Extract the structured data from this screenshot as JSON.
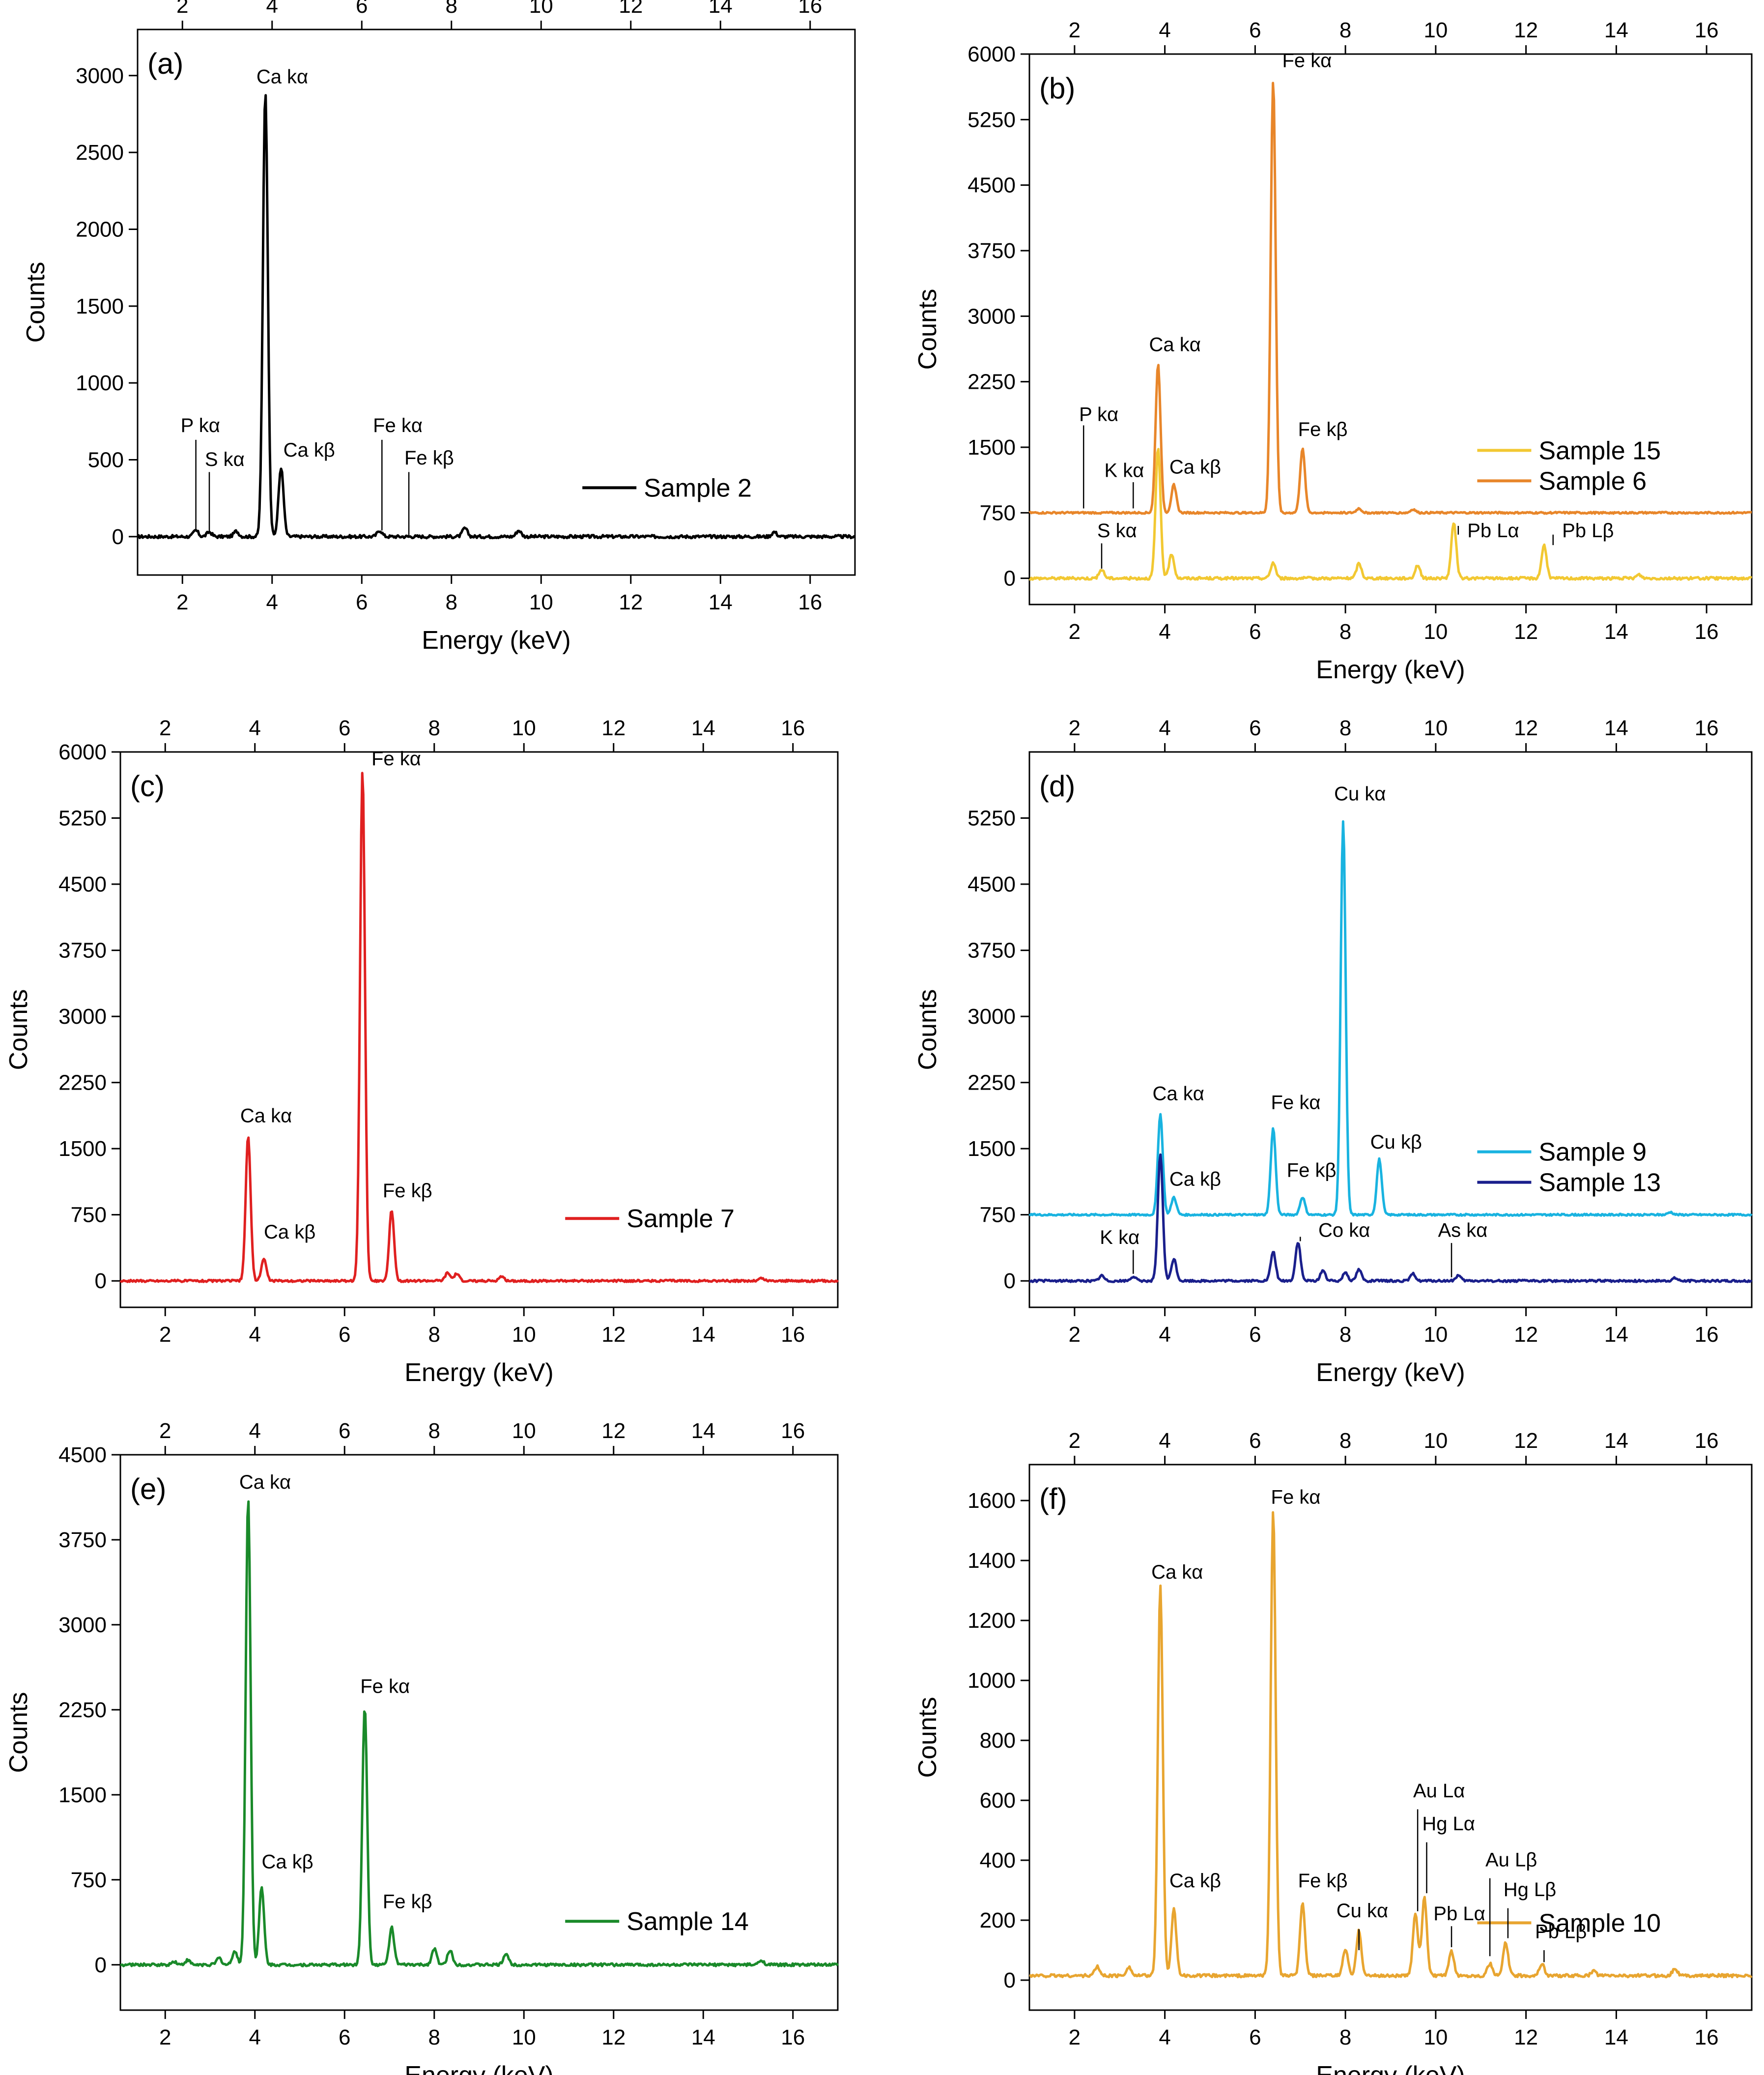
{
  "chart_data": [
    {
      "type": "line",
      "panel": "(a)",
      "xlabel": "Energy (keV)",
      "ylabel": "Counts",
      "xlim": [
        1,
        17
      ],
      "ylim": [
        -250,
        3300
      ],
      "x_ticks": [
        2,
        4,
        6,
        8,
        10,
        12,
        14,
        16
      ],
      "y_ticks": [
        0,
        500,
        1000,
        1500,
        2000,
        2500,
        3000
      ],
      "legend_position": "right",
      "series": [
        {
          "name": "Sample 2",
          "color": "#000000",
          "baseline": 0,
          "noise": 10,
          "peaks": [
            [
              2.3,
              40
            ],
            [
              2.6,
              30
            ],
            [
              3.2,
              35
            ],
            [
              3.85,
              2900
            ],
            [
              4.2,
              450
            ],
            [
              6.4,
              40
            ],
            [
              8.3,
              55
            ],
            [
              9.5,
              40
            ],
            [
              15.2,
              30
            ]
          ]
        }
      ],
      "annotations": [
        {
          "text": "Ca kα",
          "x": 3.85,
          "y": 2950,
          "anchor": "start",
          "dx": -0.2
        },
        {
          "text": "Ca kβ",
          "x": 4.2,
          "y": 520,
          "anchor": "start",
          "dx": 0.05
        },
        {
          "text": "P kα",
          "x": 2.3,
          "y": 680,
          "line_from": 40,
          "line_to": 630,
          "anchor": "middle",
          "dx": 0.1
        },
        {
          "text": "S kα",
          "x": 2.6,
          "y": 460,
          "line_from": 30,
          "line_to": 420,
          "anchor": "start",
          "dx": -0.1
        },
        {
          "text": "Fe kα",
          "x": 6.45,
          "y": 680,
          "line_from": 40,
          "line_to": 630,
          "anchor": "start",
          "dx": -0.2
        },
        {
          "text": "Fe kβ",
          "x": 7.05,
          "y": 470,
          "line_from": 0,
          "line_to": 420,
          "anchor": "start",
          "dx": -0.1
        }
      ]
    },
    {
      "type": "line",
      "panel": "(b)",
      "xlabel": "Energy (keV)",
      "ylabel": "Counts",
      "xlim": [
        1,
        17
      ],
      "ylim": [
        -300,
        6000
      ],
      "x_ticks": [
        2,
        4,
        6,
        8,
        10,
        12,
        14,
        16
      ],
      "y_ticks": [
        0,
        750,
        1500,
        2250,
        3000,
        3750,
        4500,
        5250,
        6000
      ],
      "legend_position": "right",
      "series": [
        {
          "name": "Sample 15",
          "color": "#F2C832",
          "baseline": 0,
          "noise": 15,
          "peaks": [
            [
              2.6,
              100
            ],
            [
              3.85,
              1480
            ],
            [
              4.15,
              280
            ],
            [
              6.4,
              180
            ],
            [
              8.3,
              170
            ],
            [
              9.6,
              150
            ],
            [
              10.4,
              630
            ],
            [
              12.4,
              380
            ],
            [
              14.5,
              40
            ]
          ]
        },
        {
          "name": "Sample 6",
          "color": "#E8862A",
          "baseline": 750,
          "noise": 10,
          "peaks": [
            [
              3.85,
              1700
            ],
            [
              4.2,
              320
            ],
            [
              6.4,
              4950
            ],
            [
              7.05,
              730
            ],
            [
              8.3,
              50
            ],
            [
              9.5,
              40
            ]
          ]
        }
      ],
      "annotations": [
        {
          "text": "Fe kα",
          "x": 6.4,
          "y": 5850,
          "anchor": "start",
          "dx": 0.2
        },
        {
          "text": "Ca kα",
          "x": 3.85,
          "y": 2600,
          "anchor": "start",
          "dx": -0.2
        },
        {
          "text": "Fe kβ",
          "x": 7.05,
          "y": 1630,
          "anchor": "start",
          "dx": -0.1
        },
        {
          "text": "Ca kβ",
          "x": 4.1,
          "y": 1200,
          "anchor": "start",
          "dx": 0.0
        },
        {
          "text": "P kα",
          "x": 2.2,
          "y": 1800,
          "line_from": 800,
          "line_to": 1750,
          "anchor": "start",
          "dx": -0.1
        },
        {
          "text": "K kα",
          "x": 3.3,
          "y": 1160,
          "line_from": 800,
          "line_to": 1100,
          "anchor": "middle",
          "dx": -0.2
        },
        {
          "text": "S kα",
          "x": 2.6,
          "y": 470,
          "line_from": 110,
          "line_to": 400,
          "anchor": "start",
          "dx": -0.1
        },
        {
          "text": "Pb Lα",
          "x": 10.5,
          "y": 470,
          "line_from": 600,
          "line_to": 500,
          "anchor": "start",
          "dx": 0.2
        },
        {
          "text": "Pb Lβ",
          "x": 12.6,
          "y": 470,
          "line_from": 380,
          "line_to": 500,
          "anchor": "start",
          "dx": 0.2
        }
      ]
    },
    {
      "type": "line",
      "panel": "(c)",
      "xlabel": "Energy (keV)",
      "ylabel": "Counts",
      "xlim": [
        1,
        17
      ],
      "ylim": [
        -300,
        6000
      ],
      "x_ticks": [
        2,
        4,
        6,
        8,
        10,
        12,
        14,
        16
      ],
      "y_ticks": [
        0,
        750,
        1500,
        2250,
        3000,
        3750,
        4500,
        5250,
        6000
      ],
      "legend_position": "right",
      "series": [
        {
          "name": "Sample 7",
          "color": "#E02020",
          "baseline": 0,
          "noise": 12,
          "peaks": [
            [
              3.85,
              1640
            ],
            [
              4.2,
              250
            ],
            [
              6.4,
              5800
            ],
            [
              7.05,
              800
            ],
            [
              8.3,
              90
            ],
            [
              8.5,
              80
            ],
            [
              9.5,
              50
            ],
            [
              15.3,
              30
            ]
          ]
        }
      ],
      "annotations": [
        {
          "text": "Fe kα",
          "x": 6.4,
          "y": 5850,
          "anchor": "start",
          "dx": 0.2
        },
        {
          "text": "Ca kα",
          "x": 3.85,
          "y": 1800,
          "anchor": "middle",
          "dx": 0.4
        },
        {
          "text": "Fe kβ",
          "x": 7.05,
          "y": 950,
          "anchor": "start",
          "dx": -0.2
        },
        {
          "text": "Ca kβ",
          "x": 4.2,
          "y": 480,
          "anchor": "start",
          "dx": 0.0
        }
      ]
    },
    {
      "type": "line",
      "panel": "(d)",
      "xlabel": "Energy (keV)",
      "ylabel": "Counts",
      "xlim": [
        1,
        17
      ],
      "ylim": [
        -300,
        6000
      ],
      "x_ticks": [
        2,
        4,
        6,
        8,
        10,
        12,
        14,
        16
      ],
      "y_ticks": [
        0,
        750,
        1500,
        2250,
        3000,
        3750,
        4500,
        5250
      ],
      "legend_position": "right",
      "series": [
        {
          "name": "Sample 9",
          "color": "#19B3E0",
          "baseline": 750,
          "noise": 10,
          "peaks": [
            [
              3.9,
              1140
            ],
            [
              4.2,
              200
            ],
            [
              6.4,
              980
            ],
            [
              7.05,
              200
            ],
            [
              7.95,
              4460
            ],
            [
              8.75,
              630
            ],
            [
              15.2,
              30
            ]
          ]
        },
        {
          "name": "Sample 13",
          "color": "#1A1F8C",
          "baseline": 0,
          "noise": 12,
          "peaks": [
            [
              2.6,
              60
            ],
            [
              3.3,
              50
            ],
            [
              3.9,
              1440
            ],
            [
              4.2,
              250
            ],
            [
              6.4,
              330
            ],
            [
              6.95,
              440
            ],
            [
              7.5,
              120
            ],
            [
              8.0,
              100
            ],
            [
              8.3,
              130
            ],
            [
              9.5,
              80
            ],
            [
              10.5,
              60
            ],
            [
              15.3,
              30
            ]
          ]
        }
      ],
      "annotations": [
        {
          "text": "Cu kα",
          "x": 7.95,
          "y": 5450,
          "anchor": "start",
          "dx": -0.2
        },
        {
          "text": "Ca kα",
          "x": 3.9,
          "y": 2050,
          "anchor": "middle",
          "dx": 0.4
        },
        {
          "text": "Fe kα",
          "x": 6.45,
          "y": 1950,
          "anchor": "start",
          "dx": -0.1
        },
        {
          "text": "Cu kβ",
          "x": 8.75,
          "y": 1500,
          "anchor": "start",
          "dx": -0.2
        },
        {
          "text": "Ca kβ",
          "x": 4.1,
          "y": 1080,
          "anchor": "start",
          "dx": 0.0
        },
        {
          "text": "Fe kβ",
          "x": 7.0,
          "y": 1180,
          "anchor": "start",
          "dx": -0.3
        },
        {
          "text": "K kα",
          "x": 3.3,
          "y": 420,
          "line_from": 80,
          "line_to": 350,
          "anchor": "middle",
          "dx": -0.3
        },
        {
          "text": "Co kα",
          "x": 7.0,
          "y": 500,
          "line_from": 450,
          "line_to": 500,
          "anchor": "start",
          "dx": 0.4
        },
        {
          "text": "As kα",
          "x": 10.35,
          "y": 500,
          "line_from": 40,
          "line_to": 430,
          "anchor": "start",
          "dx": -0.3
        }
      ]
    },
    {
      "type": "line",
      "panel": "(e)",
      "xlabel": "Energy (keV)",
      "ylabel": "Counts",
      "xlim": [
        1,
        17
      ],
      "ylim": [
        -400,
        4500
      ],
      "x_ticks": [
        2,
        4,
        6,
        8,
        10,
        12,
        14,
        16
      ],
      "y_ticks": [
        0,
        750,
        1500,
        2250,
        3000,
        3750,
        4500
      ],
      "legend_position": "right",
      "series": [
        {
          "name": "Sample 14",
          "color": "#1A8A2A",
          "baseline": 0,
          "noise": 12,
          "peaks": [
            [
              2.2,
              30
            ],
            [
              2.5,
              40
            ],
            [
              3.2,
              60
            ],
            [
              3.55,
              120
            ],
            [
              3.85,
              4120
            ],
            [
              4.15,
              680
            ],
            [
              6.45,
              2280
            ],
            [
              7.05,
              330
            ],
            [
              8.0,
              140
            ],
            [
              8.35,
              130
            ],
            [
              9.6,
              100
            ],
            [
              15.3,
              40
            ]
          ]
        }
      ],
      "annotations": [
        {
          "text": "Ca kα",
          "x": 3.85,
          "y": 4200,
          "anchor": "start",
          "dx": -0.2
        },
        {
          "text": "Fe kα",
          "x": 6.45,
          "y": 2400,
          "anchor": "start",
          "dx": -0.1
        },
        {
          "text": "Ca kβ",
          "x": 4.15,
          "y": 850,
          "anchor": "start",
          "dx": 0.0
        },
        {
          "text": "Fe kβ",
          "x": 7.05,
          "y": 500,
          "anchor": "start",
          "dx": -0.2
        }
      ]
    },
    {
      "type": "line",
      "panel": "(f)",
      "xlabel": "Energy (keV)",
      "ylabel": "Counts",
      "xlim": [
        1,
        17
      ],
      "ylim": [
        -100,
        1720
      ],
      "x_ticks": [
        2,
        4,
        6,
        8,
        10,
        12,
        14,
        16
      ],
      "y_ticks": [
        0,
        200,
        400,
        600,
        800,
        1000,
        1200,
        1400,
        1600
      ],
      "legend_position": "right",
      "series": [
        {
          "name": "Sample 10",
          "color": "#E8A530",
          "baseline": 15,
          "noise": 5,
          "peaks": [
            [
              2.5,
              30
            ],
            [
              3.2,
              30
            ],
            [
              3.9,
              1300
            ],
            [
              4.2,
              220
            ],
            [
              6.4,
              1550
            ],
            [
              7.05,
              240
            ],
            [
              8.0,
              90
            ],
            [
              8.3,
              150
            ],
            [
              9.55,
              210
            ],
            [
              9.75,
              260
            ],
            [
              10.35,
              80
            ],
            [
              11.2,
              40
            ],
            [
              11.55,
              110
            ],
            [
              12.35,
              40
            ],
            [
              13.5,
              15
            ],
            [
              15.3,
              25
            ]
          ]
        }
      ],
      "annotations": [
        {
          "text": "Fe kα",
          "x": 6.45,
          "y": 1590,
          "anchor": "start",
          "dx": -0.1
        },
        {
          "text": "Ca kα",
          "x": 3.9,
          "y": 1340,
          "anchor": "start",
          "dx": -0.2
        },
        {
          "text": "Ca kβ",
          "x": 4.2,
          "y": 310,
          "anchor": "start",
          "dx": -0.1
        },
        {
          "text": "Fe kβ",
          "x": 7.05,
          "y": 310,
          "anchor": "start",
          "dx": -0.1
        },
        {
          "text": "Cu kα",
          "x": 8.3,
          "y": 210,
          "line_from": 100,
          "line_to": 170,
          "anchor": "start",
          "dx": -0.5
        },
        {
          "text": "Au Lα",
          "x": 9.6,
          "y": 610,
          "line_from": 230,
          "line_to": 570,
          "anchor": "start",
          "dx": -0.1
        },
        {
          "text": "Hg Lα",
          "x": 9.8,
          "y": 500,
          "line_from": 290,
          "line_to": 460,
          "anchor": "start",
          "dx": -0.1
        },
        {
          "text": "Pb Lα",
          "x": 10.35,
          "y": 200,
          "line_from": 110,
          "line_to": 180,
          "anchor": "start",
          "dx": -0.4
        },
        {
          "text": "Au Lβ",
          "x": 11.2,
          "y": 380,
          "line_from": 80,
          "line_to": 340,
          "anchor": "start",
          "dx": -0.1
        },
        {
          "text": "Hg Lβ",
          "x": 11.6,
          "y": 280,
          "line_from": 140,
          "line_to": 240,
          "anchor": "start",
          "dx": -0.1
        },
        {
          "text": "Pb Lβ",
          "x": 12.4,
          "y": 140,
          "line_from": 60,
          "line_to": 100,
          "anchor": "start",
          "dx": -0.2
        }
      ]
    }
  ]
}
